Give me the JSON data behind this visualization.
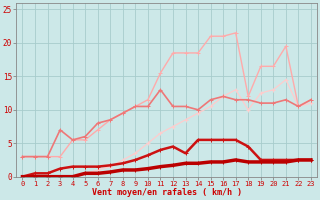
{
  "background_color": "#cce8e8",
  "grid_color": "#a8cccc",
  "x_values": [
    0,
    1,
    2,
    3,
    4,
    5,
    6,
    7,
    8,
    9,
    10,
    11,
    12,
    13,
    14,
    15,
    16,
    17,
    18,
    19,
    20,
    21,
    22,
    23
  ],
  "line_A_y": [
    0.0,
    0.0,
    0.0,
    0.0,
    0.0,
    0.5,
    0.5,
    0.7,
    1.0,
    1.0,
    1.2,
    1.5,
    1.7,
    2.0,
    2.0,
    2.2,
    2.2,
    2.5,
    2.2,
    2.2,
    2.2,
    2.2,
    2.5,
    2.5
  ],
  "line_B_y": [
    0.0,
    0.5,
    0.5,
    1.2,
    1.5,
    1.5,
    1.5,
    1.7,
    2.0,
    2.5,
    3.2,
    4.0,
    4.5,
    3.5,
    5.5,
    5.5,
    5.5,
    5.5,
    4.5,
    2.5,
    2.5,
    2.5,
    2.5,
    2.5
  ],
  "line_C_y": [
    3.0,
    3.0,
    3.0,
    7.0,
    5.5,
    6.0,
    8.0,
    8.5,
    9.5,
    10.5,
    10.5,
    13.0,
    10.5,
    10.5,
    10.0,
    11.5,
    12.0,
    11.5,
    11.5,
    11.0,
    11.0,
    11.5,
    10.5,
    11.5
  ],
  "line_D_y": [
    3.0,
    3.0,
    3.0,
    3.0,
    5.5,
    5.5,
    7.0,
    8.5,
    9.5,
    10.5,
    11.5,
    15.5,
    18.5,
    18.5,
    18.5,
    21.0,
    21.0,
    21.5,
    12.0,
    16.5,
    16.5,
    19.5,
    10.5,
    11.5
  ],
  "line_E_y": [
    0.0,
    0.0,
    0.0,
    0.0,
    0.0,
    0.5,
    1.0,
    1.5,
    2.5,
    3.5,
    5.0,
    6.5,
    7.5,
    8.5,
    9.5,
    10.5,
    12.0,
    13.0,
    10.0,
    12.5,
    13.0,
    14.5,
    10.5,
    11.0
  ],
  "color_A": "#bb0000",
  "color_B": "#cc1111",
  "color_C": "#ee7777",
  "color_D": "#ffaaaa",
  "color_E": "#ffcccc",
  "lw_A": 2.5,
  "lw_B": 1.8,
  "lw_C": 1.2,
  "lw_D": 1.0,
  "lw_E": 0.9,
  "yticks": [
    0,
    5,
    10,
    15,
    20,
    25
  ],
  "xlabel": "Vent moyen/en rafales ( km/h )",
  "ylim": [
    0,
    26
  ],
  "xlim": [
    -0.5,
    23.5
  ]
}
